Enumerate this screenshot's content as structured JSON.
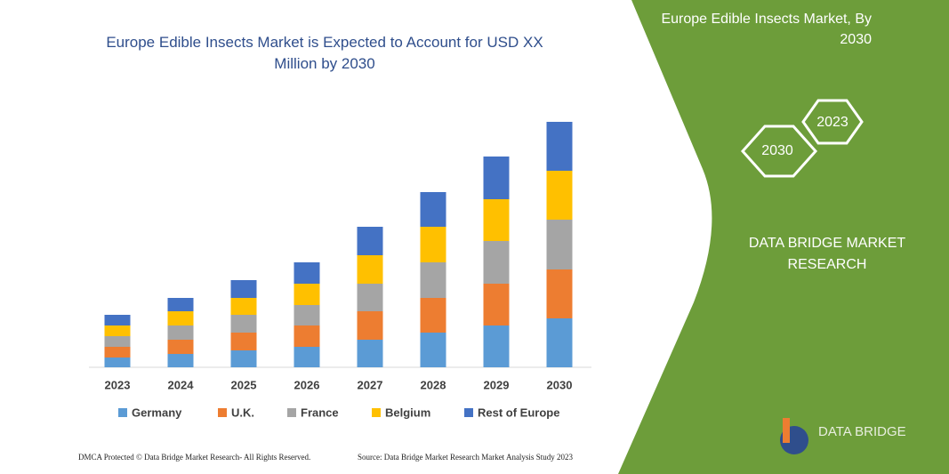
{
  "chart_data": {
    "type": "stacked_bar",
    "title": "Europe Edible Insects Market is Expected to Account for USD XX Million by 2030",
    "categories": [
      "2023",
      "2024",
      "2025",
      "2026",
      "2027",
      "2028",
      "2029",
      "2030"
    ],
    "series": [
      {
        "name": "Germany",
        "color": "#5b9bd5",
        "values": [
          11,
          15,
          19,
          23,
          31,
          39,
          47,
          55
        ]
      },
      {
        "name": "U.K.",
        "color": "#ed7d31",
        "values": [
          12,
          16,
          20,
          24,
          32,
          39,
          47,
          55
        ]
      },
      {
        "name": "France",
        "color": "#a5a5a5",
        "values": [
          12,
          16,
          20,
          23,
          31,
          40,
          48,
          56
        ]
      },
      {
        "name": "Belgium",
        "color": "#ffc000",
        "values": [
          12,
          16,
          19,
          24,
          32,
          40,
          47,
          55
        ]
      },
      {
        "name": "Rest of Europe",
        "color": "#4472c4",
        "values": [
          12,
          15,
          20,
          24,
          32,
          39,
          48,
          55
        ]
      }
    ],
    "legend": "bottom"
  },
  "panel": {
    "heading": "Europe Edible Insects Market, By 2030",
    "badges": [
      "2023",
      "2030"
    ],
    "company": "DATA BRIDGE MARKET RESEARCH",
    "logo": "DATA BRIDGE"
  },
  "footer": {
    "left": "DMCA Protected © Data Bridge Market Research- All Rights Reserved.",
    "right": "Source: Data Bridge Market Research Market Analysis Study 2023"
  }
}
